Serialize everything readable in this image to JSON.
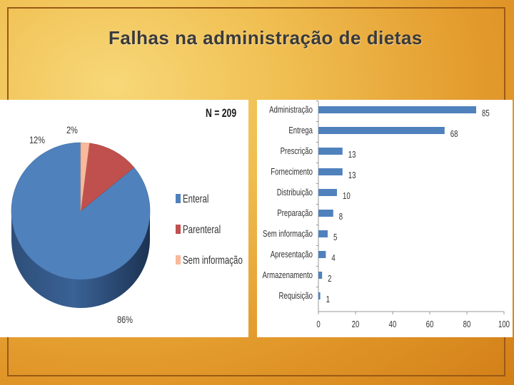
{
  "slide": {
    "title": "Falhas na administração de dietas"
  },
  "colors": {
    "background": "#e39a2c",
    "frame": "#9a5a16",
    "bar": "#4f81bd",
    "pie_enteral": "#4f81bd",
    "pie_parenteral": "#c0504d",
    "pie_sem_informacao": "#f9b99a"
  },
  "chart_data": [
    {
      "type": "pie",
      "annotation": "N = 209",
      "labels": [
        "Enteral",
        "Parenteral",
        "Sem informação"
      ],
      "values": [
        86,
        12,
        2
      ],
      "data_labels": [
        "86%",
        "12%",
        "2%"
      ],
      "legend_position": "right",
      "style": "3d"
    },
    {
      "type": "bar",
      "orientation": "horizontal",
      "categories": [
        "Administração",
        "Entrega",
        "Prescrição",
        "Fornecimento",
        "Distribuição",
        "Preparação",
        "Sem informação",
        "Apresentação",
        "Armazenamento",
        "Requisição"
      ],
      "values": [
        85,
        68,
        13,
        13,
        10,
        8,
        5,
        4,
        2,
        1
      ],
      "xlim": [
        0,
        100
      ],
      "xticks": [
        0,
        20,
        40,
        60,
        80,
        100
      ],
      "grid": false,
      "legend": false
    }
  ]
}
